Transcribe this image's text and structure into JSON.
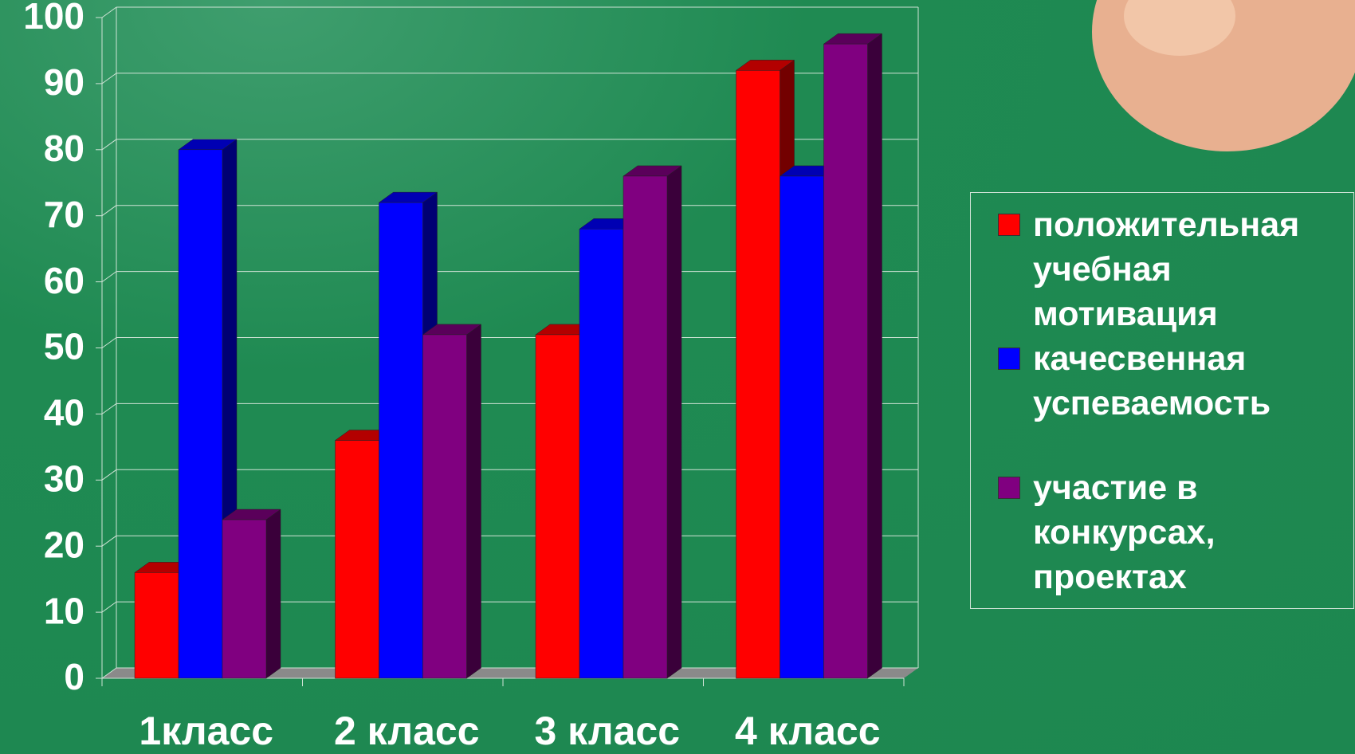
{
  "chart_data": {
    "type": "bar3d",
    "categories": [
      "1класс",
      "2 класс",
      "3 класс",
      "4 класс"
    ],
    "series": [
      {
        "name": "положительная учебная мотивация",
        "color": "#ff0000",
        "values": [
          16,
          36,
          52,
          92
        ]
      },
      {
        "name": "качесвенная успеваемость",
        "color": "#0000ff",
        "values": [
          80,
          72,
          68,
          76
        ]
      },
      {
        "name": "участие в конкурсах, проектах",
        "color": "#800080",
        "values": [
          24,
          52,
          76,
          96
        ]
      }
    ],
    "ylim": [
      0,
      100
    ],
    "yticks": [
      0,
      10,
      20,
      30,
      40,
      50,
      60,
      70,
      80,
      90,
      100
    ],
    "grid": true,
    "legend": "right"
  }
}
